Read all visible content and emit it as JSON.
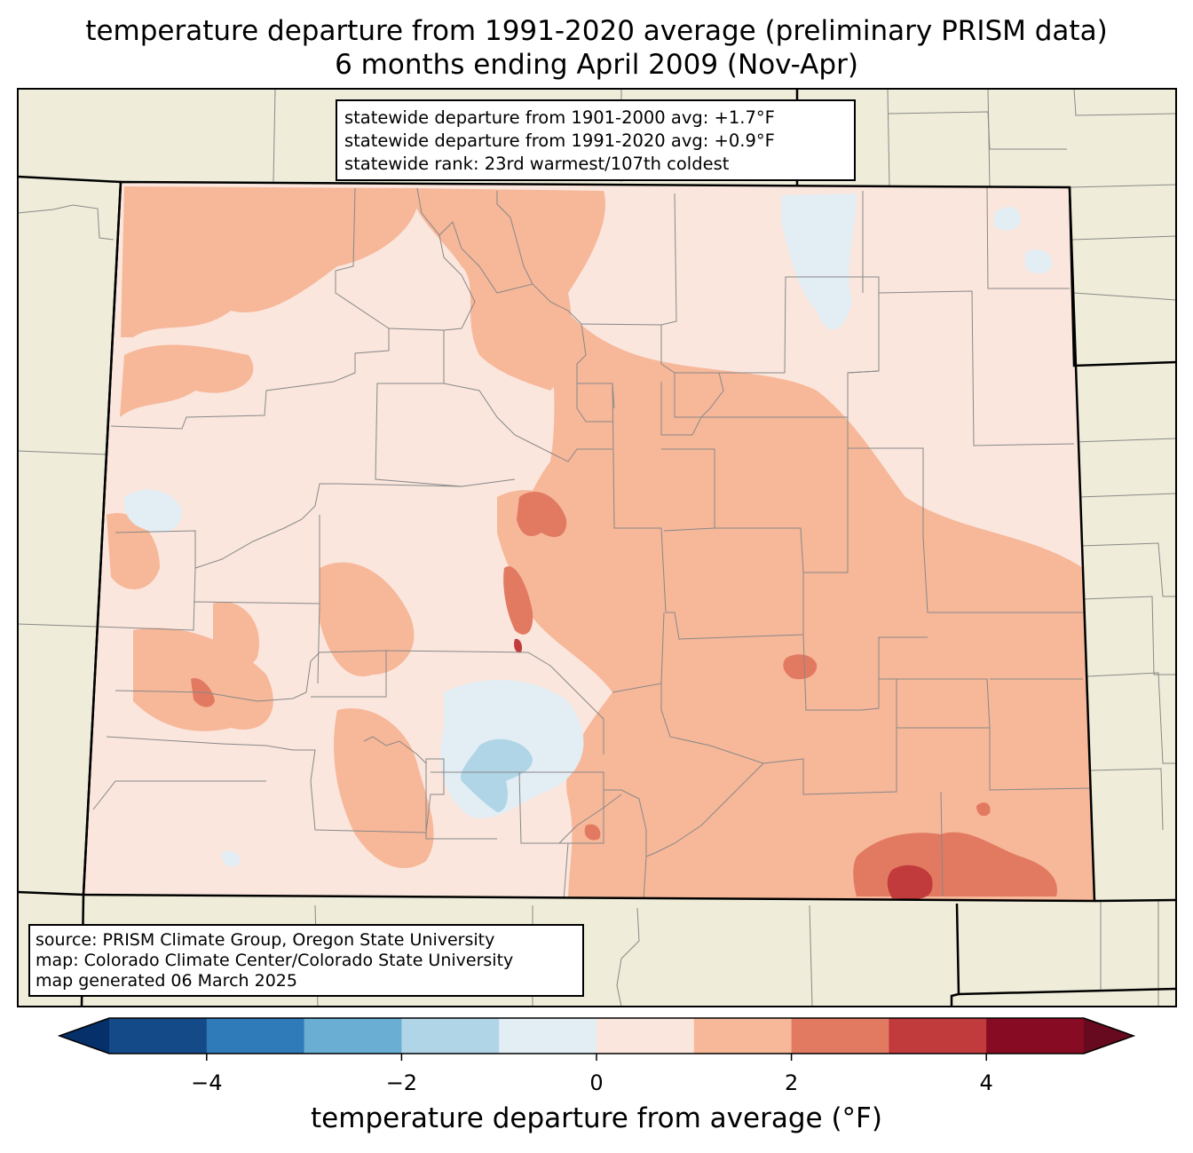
{
  "title": {
    "line1": "temperature departure from 1991-2020 average (preliminary PRISM data)",
    "line2": "6 months ending April 2009 (Nov-Apr)"
  },
  "stats": {
    "line1": "statewide departure from 1901-2000 avg: +1.7°F",
    "line2": "statewide departure from 1991-2020 avg: +0.9°F",
    "line3": "statewide rank: 23rd warmest/107th coldest"
  },
  "source": {
    "line1": "source: PRISM Climate Group, Oregon State University",
    "line2": "map: Colorado Climate Center/Colorado State University",
    "line3": "map generated 06 March 2025"
  },
  "colorbar": {
    "label": "temperature departure from average (°F)",
    "ticks": [
      "−4",
      "−2",
      "0",
      "2",
      "4"
    ],
    "bins": [
      -5,
      -4,
      -3,
      -2,
      -1,
      0,
      1,
      2,
      3,
      4,
      5
    ],
    "colors": [
      "#134a87",
      "#2f7ab9",
      "#6aaed4",
      "#b0d5e7",
      "#e3edf4",
      "#fae6dd",
      "#f7b799",
      "#e27a62",
      "#c13a3c",
      "#870b23"
    ],
    "under_color": "#063069",
    "over_color": "#670a20"
  },
  "map": {
    "background_color": "#efedd9",
    "state_fill": "#fae6dd"
  }
}
